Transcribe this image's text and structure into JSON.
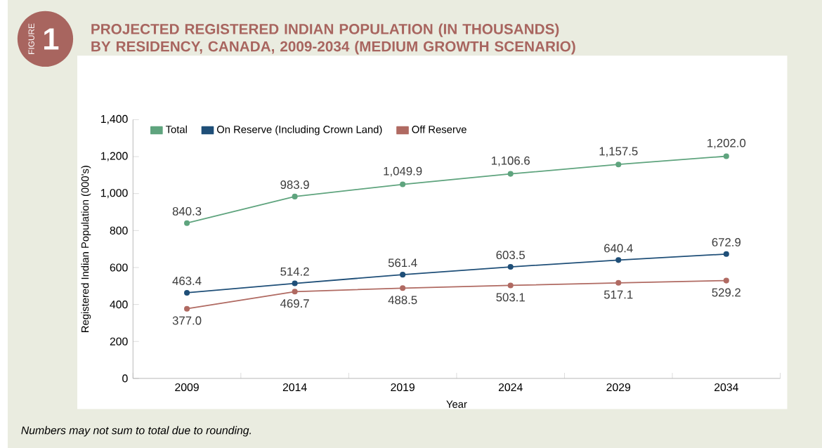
{
  "chart_data": {
    "type": "line",
    "title": "PROJECTED REGISTERED INDIAN POPULATION (IN THOUSANDS)\nBY RESIDENCY, CANADA, 2009-2034 (MEDIUM GROWTH SCENARIO)",
    "xlabel": "Year",
    "ylabel": "Registered Indian Population (000's)",
    "categories": [
      "2009",
      "2014",
      "2019",
      "2024",
      "2029",
      "2034"
    ],
    "series": [
      {
        "name": "Total",
        "color": "#5fa47e",
        "values": [
          840.3,
          983.9,
          1049.9,
          1106.6,
          1157.5,
          1202.0
        ],
        "value_labels": [
          "840.3",
          "983.9",
          "1,049.9",
          "1,106.6",
          "1,157.5",
          "1,202.0"
        ]
      },
      {
        "name": "On Reserve (Including Crown Land)",
        "color": "#1f4f78",
        "values": [
          463.4,
          514.2,
          561.4,
          603.5,
          640.4,
          672.9
        ],
        "value_labels": [
          "463.4",
          "514.2",
          "561.4",
          "603.5",
          "640.4",
          "672.9"
        ]
      },
      {
        "name": "Off Reserve",
        "color": "#b06a62",
        "values": [
          377.0,
          469.7,
          488.5,
          503.1,
          517.1,
          529.2
        ],
        "value_labels": [
          "377.0",
          "469.7",
          "488.5",
          "503.1",
          "517.1",
          "529.2"
        ]
      }
    ],
    "ylim": [
      0,
      1400
    ],
    "yticks": [
      0,
      200,
      400,
      600,
      800,
      {
        "value": 1000,
        "label": "1,000"
      },
      {
        "value": 1200,
        "label": "1,200"
      },
      {
        "value": 1400,
        "label": "1,400"
      }
    ],
    "legend": "top left",
    "marker": "circle",
    "line_style": "solid",
    "annotations": [
      "FIGURE",
      "1",
      "Numbers may not sum to total due to rounding."
    ]
  }
}
